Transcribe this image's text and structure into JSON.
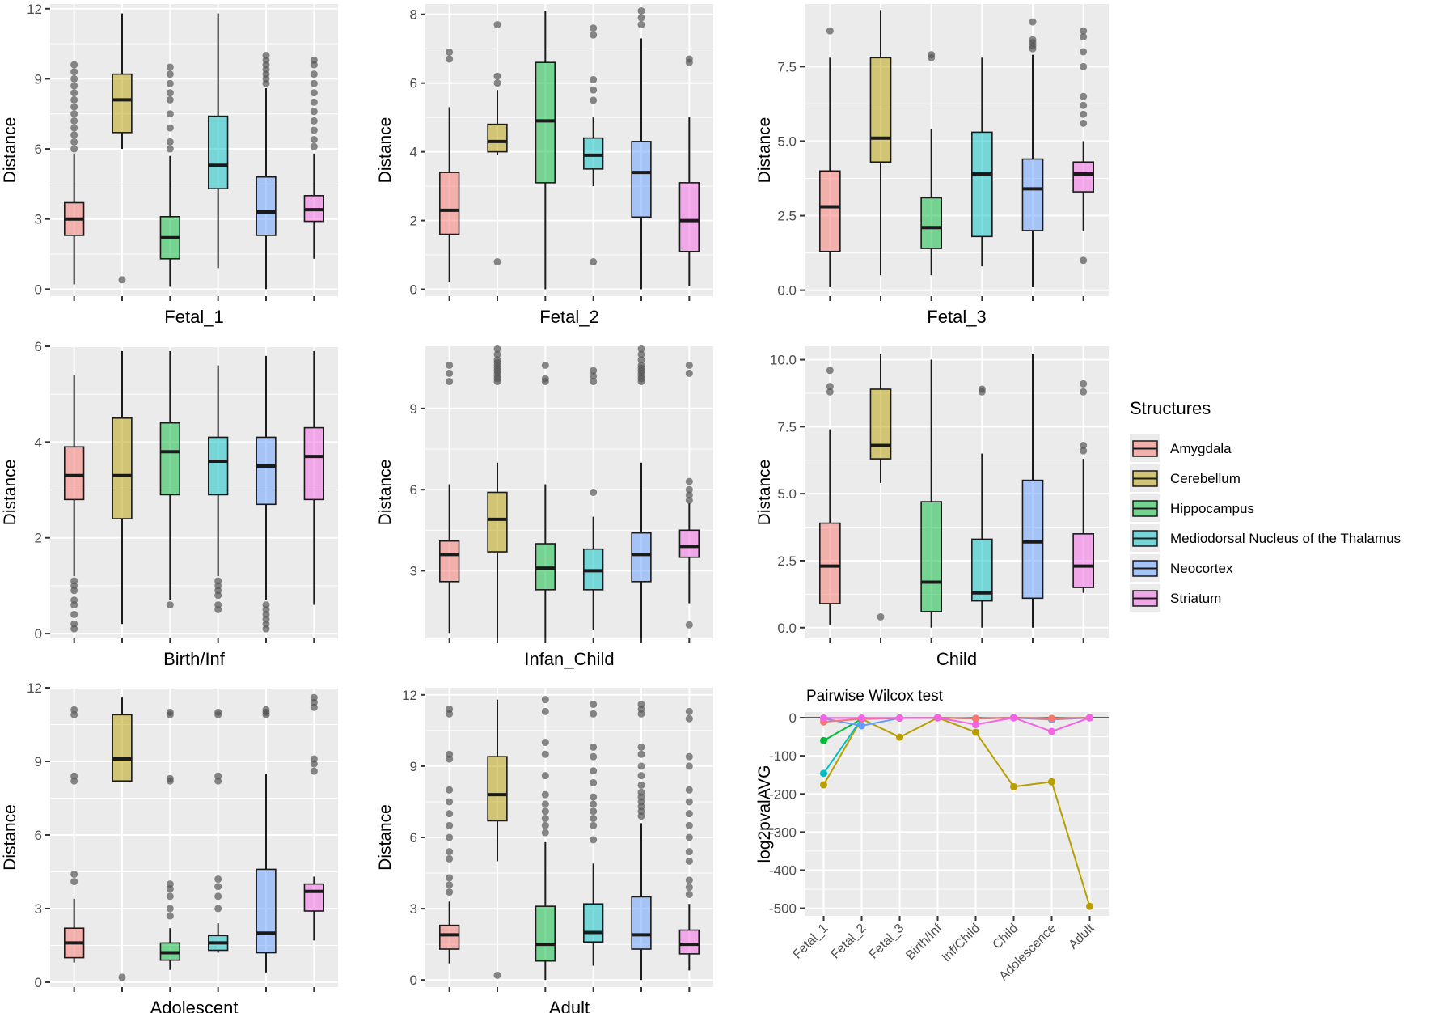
{
  "colors": {
    "panel_bg": "#EBEBEB",
    "grid": "#FFFFFF",
    "Amygdala": "#F8766D",
    "Cerebellum": "#B79F00",
    "Hippocampus": "#00BA38",
    "Mediodorsal Nucleus of the Thalamus": "#00BFC4",
    "Neocortex": "#619CFF",
    "Striatum": "#F564E3",
    "outlier": "#555555"
  },
  "legend": {
    "title": "Structures",
    "items": [
      "Amygdala",
      "Cerebellum",
      "Hippocampus",
      "Mediodorsal Nucleus of the Thalamus",
      "Neocortex",
      "Striatum"
    ]
  },
  "chart_data": [
    {
      "type": "box",
      "title": "Fetal_1",
      "xlabel": "Fetal_1",
      "ylabel": "Distance",
      "ylim": [
        -0.3,
        12.2
      ],
      "yticks": [
        0,
        3,
        6,
        9,
        12
      ],
      "boxes": [
        {
          "group": "Amygdala",
          "min": 0.2,
          "q1": 2.3,
          "median": 3.0,
          "q3": 3.7,
          "max": 5.8,
          "outliers": [
            6.0,
            6.3,
            6.6,
            6.9,
            7.2,
            7.5,
            7.8,
            8.1,
            8.4,
            8.7,
            9.0,
            9.3,
            9.6
          ]
        },
        {
          "group": "Cerebellum",
          "min": 6.0,
          "q1": 6.7,
          "median": 8.1,
          "q3": 9.2,
          "max": 11.8,
          "outliers": [
            0.4
          ]
        },
        {
          "group": "Hippocampus",
          "min": 0.1,
          "q1": 1.3,
          "median": 2.2,
          "q3": 3.1,
          "max": 5.7,
          "outliers": [
            6.0,
            6.3,
            6.9,
            7.5,
            8.1,
            8.4,
            8.8,
            9.2,
            9.5
          ]
        },
        {
          "group": "Mediodorsal Nucleus of the Thalamus",
          "min": 0.9,
          "q1": 4.3,
          "median": 5.3,
          "q3": 7.4,
          "max": 11.8,
          "outliers": []
        },
        {
          "group": "Neocortex",
          "min": 0.0,
          "q1": 2.3,
          "median": 3.3,
          "q3": 4.8,
          "max": 8.6,
          "outliers": [
            8.8,
            9.0,
            9.2,
            9.4,
            9.6,
            9.8,
            10.0
          ]
        },
        {
          "group": "Striatum",
          "min": 1.3,
          "q1": 2.9,
          "median": 3.4,
          "q3": 4.0,
          "max": 5.8,
          "outliers": [
            6.1,
            6.4,
            6.8,
            7.2,
            7.6,
            8.0,
            8.4,
            8.8,
            9.2,
            9.6,
            9.8
          ]
        }
      ]
    },
    {
      "type": "box",
      "title": "Fetal_2",
      "xlabel": "Fetal_2",
      "ylabel": "Distance",
      "ylim": [
        -0.2,
        8.3
      ],
      "yticks": [
        0,
        2,
        4,
        6,
        8
      ],
      "boxes": [
        {
          "group": "Amygdala",
          "min": 0.2,
          "q1": 1.6,
          "median": 2.3,
          "q3": 3.4,
          "max": 5.3,
          "outliers": [
            6.7,
            6.9
          ]
        },
        {
          "group": "Cerebellum",
          "min": 3.9,
          "q1": 4.0,
          "median": 4.3,
          "q3": 4.8,
          "max": 5.8,
          "outliers": [
            0.8,
            6.0,
            6.2,
            7.7
          ]
        },
        {
          "group": "Hippocampus",
          "min": 0.0,
          "q1": 3.1,
          "median": 4.9,
          "q3": 6.6,
          "max": 8.1,
          "outliers": []
        },
        {
          "group": "Mediodorsal Nucleus of the Thalamus",
          "min": 3.0,
          "q1": 3.5,
          "median": 3.9,
          "q3": 4.4,
          "max": 5.0,
          "outliers": [
            0.8,
            5.5,
            5.8,
            6.1,
            7.4,
            7.6
          ]
        },
        {
          "group": "Neocortex",
          "min": 0.0,
          "q1": 2.1,
          "median": 3.4,
          "q3": 4.3,
          "max": 7.3,
          "outliers": [
            7.7,
            7.9,
            8.1
          ]
        },
        {
          "group": "Striatum",
          "min": 0.1,
          "q1": 1.1,
          "median": 2.0,
          "q3": 3.1,
          "max": 5.0,
          "outliers": [
            6.6,
            6.7
          ]
        }
      ]
    },
    {
      "type": "box",
      "title": "Fetal_3",
      "xlabel": "Fetal_3",
      "ylabel": "Distance",
      "ylim": [
        -0.2,
        9.6
      ],
      "yticks": [
        0,
        2.5,
        5,
        7.5
      ],
      "yticklabels": [
        "0.0",
        "2.5",
        "5.0",
        "7.5"
      ],
      "boxes": [
        {
          "group": "Amygdala",
          "min": 0.1,
          "q1": 1.3,
          "median": 2.8,
          "q3": 4.0,
          "max": 7.8,
          "outliers": [
            8.7
          ]
        },
        {
          "group": "Cerebellum",
          "min": 0.5,
          "q1": 4.3,
          "median": 5.1,
          "q3": 7.8,
          "max": 9.4,
          "outliers": []
        },
        {
          "group": "Hippocampus",
          "min": 0.5,
          "q1": 1.4,
          "median": 2.1,
          "q3": 3.1,
          "max": 5.4,
          "outliers": [
            7.8,
            7.9
          ]
        },
        {
          "group": "Mediodorsal Nucleus of the Thalamus",
          "min": 0.8,
          "q1": 1.8,
          "median": 3.9,
          "q3": 5.3,
          "max": 7.8,
          "outliers": []
        },
        {
          "group": "Neocortex",
          "min": 0.1,
          "q1": 2.0,
          "median": 3.4,
          "q3": 4.4,
          "max": 7.9,
          "outliers": [
            8.1,
            8.2,
            8.3,
            8.4,
            9.0
          ]
        },
        {
          "group": "Striatum",
          "min": 2.0,
          "q1": 3.3,
          "median": 3.9,
          "q3": 4.3,
          "max": 5.0,
          "outliers": [
            1.0,
            5.6,
            5.9,
            6.2,
            6.5,
            7.5,
            8.0,
            8.5,
            8.7
          ]
        }
      ]
    },
    {
      "type": "box",
      "title": "Birth/Inf",
      "xlabel": "Birth/Inf",
      "ylabel": "Distance",
      "ylim": [
        -0.1,
        6.0
      ],
      "yticks": [
        0,
        2,
        4,
        6
      ],
      "boxes": [
        {
          "group": "Amygdala",
          "min": 1.2,
          "q1": 2.8,
          "median": 3.3,
          "q3": 3.9,
          "max": 5.4,
          "outliers": [
            0.1,
            0.2,
            0.4,
            0.6,
            0.7,
            0.9,
            1.0,
            1.1
          ]
        },
        {
          "group": "Cerebellum",
          "min": 0.2,
          "q1": 2.4,
          "median": 3.3,
          "q3": 4.5,
          "max": 5.9,
          "outliers": []
        },
        {
          "group": "Hippocampus",
          "min": 0.7,
          "q1": 2.9,
          "median": 3.8,
          "q3": 4.4,
          "max": 5.9,
          "outliers": [
            0.6
          ]
        },
        {
          "group": "Mediodorsal Nucleus of the Thalamus",
          "min": 1.2,
          "q1": 2.9,
          "median": 3.6,
          "q3": 4.1,
          "max": 5.6,
          "outliers": [
            0.5,
            0.6,
            0.8,
            0.9,
            1.0,
            1.1
          ]
        },
        {
          "group": "Neocortex",
          "min": 0.7,
          "q1": 2.7,
          "median": 3.5,
          "q3": 4.1,
          "max": 5.8,
          "outliers": [
            0.1,
            0.2,
            0.3,
            0.4,
            0.5,
            0.6
          ]
        },
        {
          "group": "Striatum",
          "min": 0.6,
          "q1": 2.8,
          "median": 3.7,
          "q3": 4.3,
          "max": 5.9,
          "outliers": []
        }
      ]
    },
    {
      "type": "box",
      "title": "Infan_Child",
      "xlabel": "Infan_Child",
      "ylabel": "Distance",
      "ylim": [
        0.5,
        11.3
      ],
      "yticks": [
        3,
        6,
        9
      ],
      "boxes": [
        {
          "group": "Amygdala",
          "min": 0.7,
          "q1": 2.6,
          "median": 3.6,
          "q3": 4.1,
          "max": 6.2,
          "outliers": [
            10.0,
            10.3,
            10.6
          ]
        },
        {
          "group": "Cerebellum",
          "min": 0.5,
          "q1": 3.7,
          "median": 4.9,
          "q3": 5.9,
          "max": 7.0,
          "outliers": [
            10.0,
            10.1,
            10.2,
            10.3,
            10.4,
            10.5,
            10.6,
            10.7,
            10.8,
            11.0,
            11.2
          ]
        },
        {
          "group": "Hippocampus",
          "min": 0.5,
          "q1": 2.3,
          "median": 3.1,
          "q3": 4.0,
          "max": 6.2,
          "outliers": [
            10.0,
            10.1,
            10.6
          ]
        },
        {
          "group": "Mediodorsal Nucleus of the Thalamus",
          "min": 0.8,
          "q1": 2.3,
          "median": 3.0,
          "q3": 3.8,
          "max": 5.0,
          "outliers": [
            5.9,
            10.0,
            10.2,
            10.4
          ]
        },
        {
          "group": "Neocortex",
          "min": 0.5,
          "q1": 2.6,
          "median": 3.6,
          "q3": 4.4,
          "max": 7.0,
          "outliers": [
            10.0,
            10.1,
            10.2,
            10.3,
            10.4,
            10.5,
            10.6,
            10.8,
            11.0,
            11.2
          ]
        },
        {
          "group": "Striatum",
          "min": 1.8,
          "q1": 3.5,
          "median": 3.9,
          "q3": 4.5,
          "max": 5.5,
          "outliers": [
            1.0,
            5.6,
            5.8,
            6.0,
            6.3,
            10.3,
            10.6
          ]
        }
      ]
    },
    {
      "type": "box",
      "title": "Child",
      "xlabel": "Child",
      "ylabel": "Distance",
      "ylim": [
        -0.4,
        10.5
      ],
      "yticks": [
        0,
        2.5,
        5,
        7.5,
        10
      ],
      "yticklabels": [
        "0.0",
        "2.5",
        "5.0",
        "7.5",
        "10.0"
      ],
      "boxes": [
        {
          "group": "Amygdala",
          "min": 0.1,
          "q1": 0.9,
          "median": 2.3,
          "q3": 3.9,
          "max": 7.4,
          "outliers": [
            8.8,
            9.0,
            9.6
          ]
        },
        {
          "group": "Cerebellum",
          "min": 5.4,
          "q1": 6.3,
          "median": 6.8,
          "q3": 8.9,
          "max": 10.2,
          "outliers": [
            0.4
          ]
        },
        {
          "group": "Hippocampus",
          "min": 0.0,
          "q1": 0.6,
          "median": 1.7,
          "q3": 4.7,
          "max": 10.0,
          "outliers": []
        },
        {
          "group": "Mediodorsal Nucleus of the Thalamus",
          "min": 0.0,
          "q1": 1.0,
          "median": 1.3,
          "q3": 3.3,
          "max": 6.5,
          "outliers": [
            8.8,
            8.9
          ]
        },
        {
          "group": "Neocortex",
          "min": 0.0,
          "q1": 1.1,
          "median": 3.2,
          "q3": 5.5,
          "max": 10.2,
          "outliers": []
        },
        {
          "group": "Striatum",
          "min": 1.3,
          "q1": 1.5,
          "median": 2.3,
          "q3": 3.5,
          "max": 6.3,
          "outliers": [
            6.6,
            6.8,
            8.8,
            9.1
          ]
        }
      ]
    },
    {
      "type": "box",
      "title": "Adolescent",
      "xlabel": "Adolescent",
      "ylabel": "Distance",
      "ylim": [
        -0.2,
        12.0
      ],
      "yticks": [
        0,
        3,
        6,
        9,
        12
      ],
      "boxes": [
        {
          "group": "Amygdala",
          "min": 0.8,
          "q1": 1.0,
          "median": 1.6,
          "q3": 2.2,
          "max": 3.4,
          "outliers": [
            4.1,
            4.4,
            8.2,
            8.4,
            10.9,
            11.1
          ]
        },
        {
          "group": "Cerebellum",
          "min": 8.2,
          "q1": 8.2,
          "median": 9.1,
          "q3": 10.9,
          "max": 11.6,
          "outliers": [
            0.2
          ]
        },
        {
          "group": "Hippocampus",
          "min": 0.5,
          "q1": 0.9,
          "median": 1.2,
          "q3": 1.6,
          "max": 2.2,
          "outliers": [
            2.7,
            3.0,
            3.5,
            3.8,
            4.0,
            8.2,
            8.3,
            10.9,
            11.0
          ]
        },
        {
          "group": "Mediodorsal Nucleus of the Thalamus",
          "min": 1.2,
          "q1": 1.3,
          "median": 1.6,
          "q3": 1.9,
          "max": 2.4,
          "outliers": [
            3.0,
            3.5,
            3.9,
            4.2,
            8.2,
            8.4,
            10.9,
            11.0
          ]
        },
        {
          "group": "Neocortex",
          "min": 0.4,
          "q1": 1.2,
          "median": 2.0,
          "q3": 4.6,
          "max": 8.5,
          "outliers": [
            10.9,
            11.0,
            11.1
          ]
        },
        {
          "group": "Striatum",
          "min": 1.7,
          "q1": 2.9,
          "median": 3.7,
          "q3": 4.0,
          "max": 4.3,
          "outliers": [
            8.6,
            8.9,
            9.1,
            11.2,
            11.4,
            11.6
          ]
        }
      ]
    },
    {
      "type": "box",
      "title": "Adult",
      "xlabel": "Adult",
      "ylabel": "Distance",
      "ylim": [
        -0.3,
        12.3
      ],
      "yticks": [
        0,
        3,
        6,
        9,
        12
      ],
      "boxes": [
        {
          "group": "Amygdala",
          "min": 0.7,
          "q1": 1.3,
          "median": 1.9,
          "q3": 2.3,
          "max": 3.3,
          "outliers": [
            3.7,
            4.0,
            4.3,
            5.1,
            5.4,
            6.0,
            6.5,
            7.0,
            7.5,
            8.0,
            9.3,
            9.5,
            11.2,
            11.4
          ]
        },
        {
          "group": "Cerebellum",
          "min": 5.0,
          "q1": 6.7,
          "median": 7.8,
          "q3": 9.4,
          "max": 11.8,
          "outliers": [
            0.2
          ]
        },
        {
          "group": "Hippocampus",
          "min": 0.0,
          "q1": 0.8,
          "median": 1.5,
          "q3": 3.1,
          "max": 5.8,
          "outliers": [
            6.2,
            6.5,
            6.8,
            7.1,
            7.4,
            7.8,
            8.6,
            9.5,
            10.0,
            11.3,
            11.8
          ]
        },
        {
          "group": "Mediodorsal Nucleus of the Thalamus",
          "min": 0.6,
          "q1": 1.6,
          "median": 2.0,
          "q3": 3.2,
          "max": 4.9,
          "outliers": [
            5.9,
            6.5,
            6.8,
            7.1,
            7.4,
            7.7,
            8.3,
            8.8,
            9.4,
            9.8,
            11.2,
            11.6
          ]
        },
        {
          "group": "Neocortex",
          "min": 0.0,
          "q1": 1.3,
          "median": 1.9,
          "q3": 3.5,
          "max": 6.6,
          "outliers": [
            6.9,
            7.1,
            7.3,
            7.5,
            7.7,
            7.9,
            8.2,
            8.6,
            9.0,
            9.5,
            9.8,
            11.2,
            11.4,
            11.6
          ]
        },
        {
          "group": "Striatum",
          "min": 0.4,
          "q1": 1.1,
          "median": 1.5,
          "q3": 2.1,
          "max": 3.2,
          "outliers": [
            3.6,
            3.9,
            4.2,
            5.0,
            5.4,
            6.0,
            6.5,
            7.0,
            7.5,
            8.0,
            9.0,
            9.4,
            11.0,
            11.3
          ]
        }
      ]
    },
    {
      "type": "line",
      "title": "Pairwise Wilcox test",
      "xlabel": "",
      "ylabel": "log2pvalAVG",
      "ylim": [
        -520,
        15
      ],
      "yticks": [
        0,
        -100,
        -200,
        -300,
        -400,
        -500
      ],
      "categories": [
        "Fetal_1",
        "Fetal_2",
        "Fetal_3",
        "Birth/Inf",
        "Inf/Child",
        "Child",
        "Adolescence",
        "Adult"
      ],
      "hline": 0,
      "series": [
        {
          "name": "Cerebellum",
          "values": [
            -176,
            -3,
            -51,
            0,
            -38,
            -181,
            -168,
            -495
          ]
        },
        {
          "name": "Mediodorsal Nucleus of the Thalamus",
          "values": [
            -146,
            -3,
            -1,
            0,
            -2,
            0,
            -3,
            0
          ]
        },
        {
          "name": "Hippocampus",
          "values": [
            -60,
            -3,
            -1,
            0,
            -2,
            0,
            -2,
            0
          ]
        },
        {
          "name": "Neocortex",
          "values": [
            -2,
            -21,
            -1,
            0,
            -2,
            0,
            -5,
            0
          ]
        },
        {
          "name": "Amygdala",
          "values": [
            -11,
            -3,
            -1,
            0,
            -2,
            0,
            -2,
            0
          ]
        },
        {
          "name": "Striatum",
          "values": [
            -1,
            -1,
            -1,
            0,
            -18,
            0,
            -36,
            0
          ]
        }
      ]
    }
  ]
}
